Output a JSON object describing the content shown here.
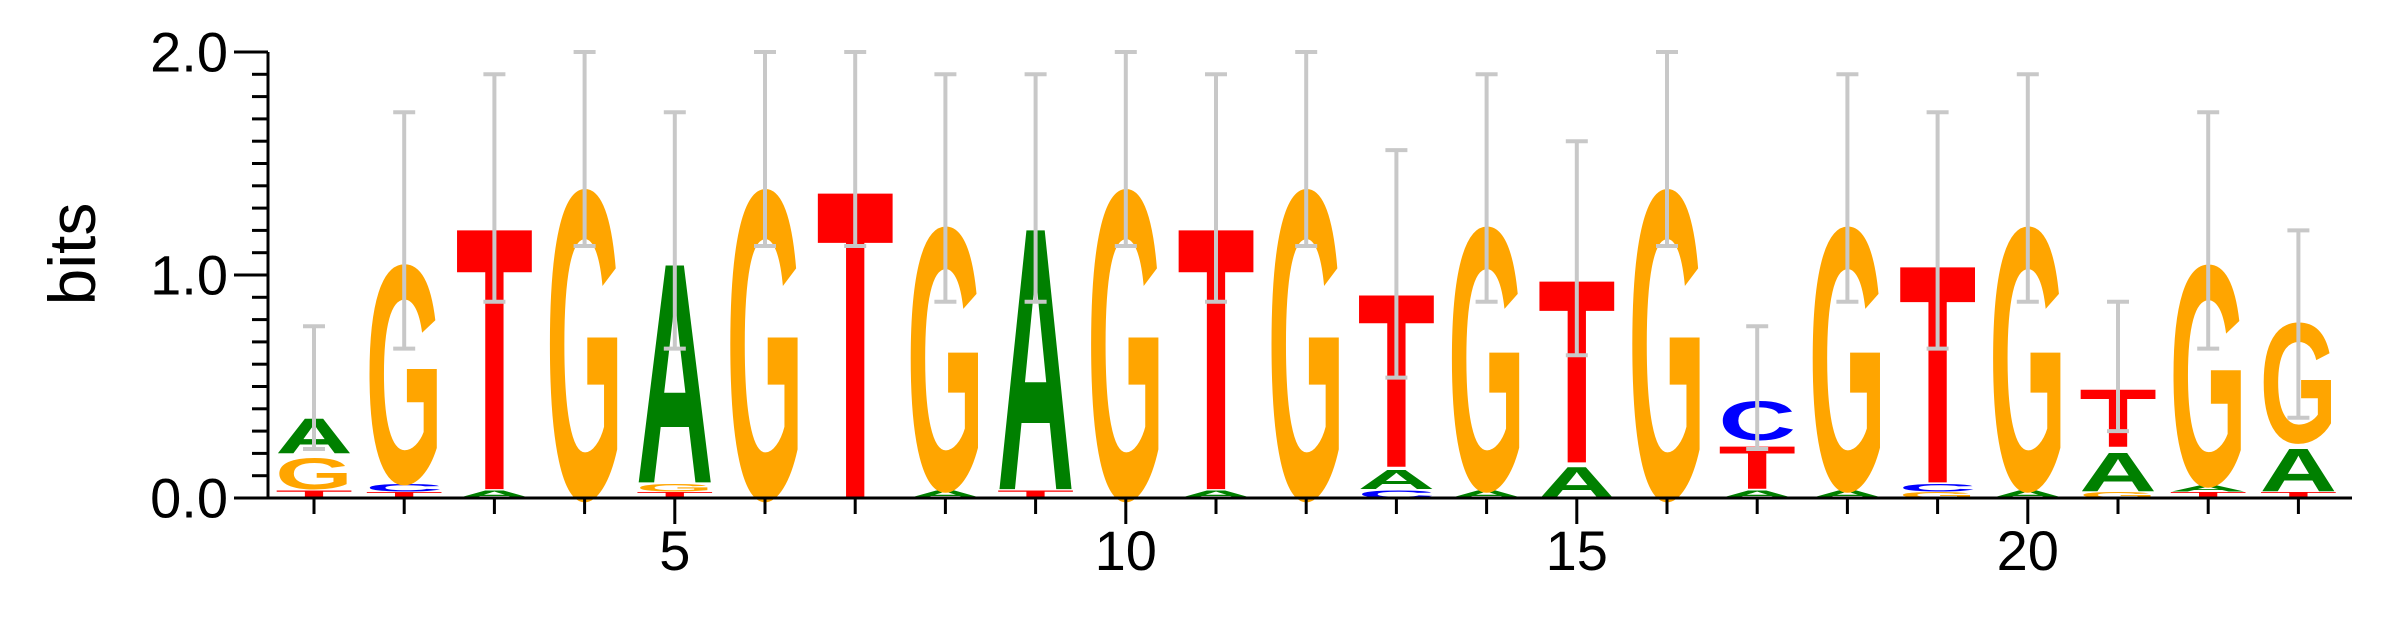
{
  "chart_data": {
    "type": "sequence-logo",
    "ylabel": "bits",
    "ylim": [
      0,
      2
    ],
    "y_ticks": [
      "0.0",
      "1.0",
      "2.0"
    ],
    "y_tick_values": [
      0,
      1,
      2
    ],
    "x_ticks": [
      "5",
      "10",
      "15",
      "20"
    ],
    "x_tick_values": [
      5,
      10,
      15,
      20
    ],
    "colors": {
      "A": "#008000",
      "C": "#0000ff",
      "G": "#ffa500",
      "T": "#ff0000",
      "errorbar": "#c8c8c8"
    },
    "positions": [
      {
        "pos": 1,
        "letters": [
          [
            "T",
            0.04
          ],
          [
            "G",
            0.16
          ],
          [
            "A",
            0.18
          ]
        ],
        "error": [
          0.22,
          0.77
        ]
      },
      {
        "pos": 2,
        "letters": [
          [
            "T",
            0.03
          ],
          [
            "C",
            0.04
          ],
          [
            "G",
            1.13
          ]
        ],
        "error": [
          0.67,
          1.73
        ]
      },
      {
        "pos": 3,
        "letters": [
          [
            "A",
            0.04
          ],
          [
            "T",
            1.36
          ]
        ],
        "error": [
          0.88,
          1.9
        ]
      },
      {
        "pos": 4,
        "letters": [
          [
            "G",
            1.6
          ]
        ],
        "error": [
          1.13,
          2.0
        ]
      },
      {
        "pos": 5,
        "letters": [
          [
            "T",
            0.03
          ],
          [
            "G",
            0.04
          ],
          [
            "A",
            1.14
          ]
        ],
        "error": [
          0.67,
          1.73
        ]
      },
      {
        "pos": 6,
        "letters": [
          [
            "G",
            1.6
          ]
        ],
        "error": [
          1.13,
          2.0
        ]
      },
      {
        "pos": 7,
        "letters": [
          [
            "T",
            1.6
          ]
        ],
        "error": [
          1.13,
          2.0
        ]
      },
      {
        "pos": 8,
        "letters": [
          [
            "A",
            0.04
          ],
          [
            "G",
            1.36
          ]
        ],
        "error": [
          0.88,
          1.9
        ]
      },
      {
        "pos": 9,
        "letters": [
          [
            "T",
            0.04
          ],
          [
            "A",
            1.36
          ]
        ],
        "error": [
          0.88,
          1.9
        ]
      },
      {
        "pos": 10,
        "letters": [
          [
            "G",
            1.6
          ]
        ],
        "error": [
          1.13,
          2.0
        ]
      },
      {
        "pos": 11,
        "letters": [
          [
            "A",
            0.04
          ],
          [
            "T",
            1.36
          ]
        ],
        "error": [
          0.88,
          1.9
        ]
      },
      {
        "pos": 12,
        "letters": [
          [
            "G",
            1.6
          ]
        ],
        "error": [
          1.13,
          2.0
        ]
      },
      {
        "pos": 13,
        "letters": [
          [
            "C",
            0.04
          ],
          [
            "A",
            0.1
          ],
          [
            "T",
            0.9
          ]
        ],
        "error": [
          0.54,
          1.56
        ]
      },
      {
        "pos": 14,
        "letters": [
          [
            "A",
            0.04
          ],
          [
            "G",
            1.36
          ]
        ],
        "error": [
          0.88,
          1.9
        ]
      },
      {
        "pos": 15,
        "letters": [
          [
            "A",
            0.16
          ],
          [
            "T",
            0.95
          ]
        ],
        "error": [
          0.64,
          1.6
        ]
      },
      {
        "pos": 16,
        "letters": [
          [
            "G",
            1.6
          ]
        ],
        "error": [
          1.13,
          2.0
        ]
      },
      {
        "pos": 17,
        "letters": [
          [
            "A",
            0.04
          ],
          [
            "T",
            0.22
          ],
          [
            "C",
            0.2
          ]
        ],
        "error": [
          0.22,
          0.77
        ]
      },
      {
        "pos": 18,
        "letters": [
          [
            "A",
            0.04
          ],
          [
            "G",
            1.36
          ]
        ],
        "error": [
          0.88,
          1.9
        ]
      },
      {
        "pos": 19,
        "letters": [
          [
            "G",
            0.03
          ],
          [
            "C",
            0.04
          ],
          [
            "T",
            1.13
          ]
        ],
        "error": [
          0.67,
          1.73
        ]
      },
      {
        "pos": 20,
        "letters": [
          [
            "A",
            0.04
          ],
          [
            "G",
            1.36
          ]
        ],
        "error": [
          0.88,
          1.9
        ]
      },
      {
        "pos": 21,
        "letters": [
          [
            "G",
            0.03
          ],
          [
            "A",
            0.2
          ],
          [
            "T",
            0.3
          ]
        ],
        "error": [
          0.3,
          0.88
        ]
      },
      {
        "pos": 22,
        "letters": [
          [
            "T",
            0.03
          ],
          [
            "A",
            0.03
          ],
          [
            "G",
            1.14
          ]
        ],
        "error": [
          0.67,
          1.73
        ]
      },
      {
        "pos": 23,
        "letters": [
          [
            "T",
            0.03
          ],
          [
            "A",
            0.22
          ],
          [
            "G",
            0.62
          ]
        ],
        "error": [
          0.36,
          1.2
        ]
      }
    ]
  }
}
